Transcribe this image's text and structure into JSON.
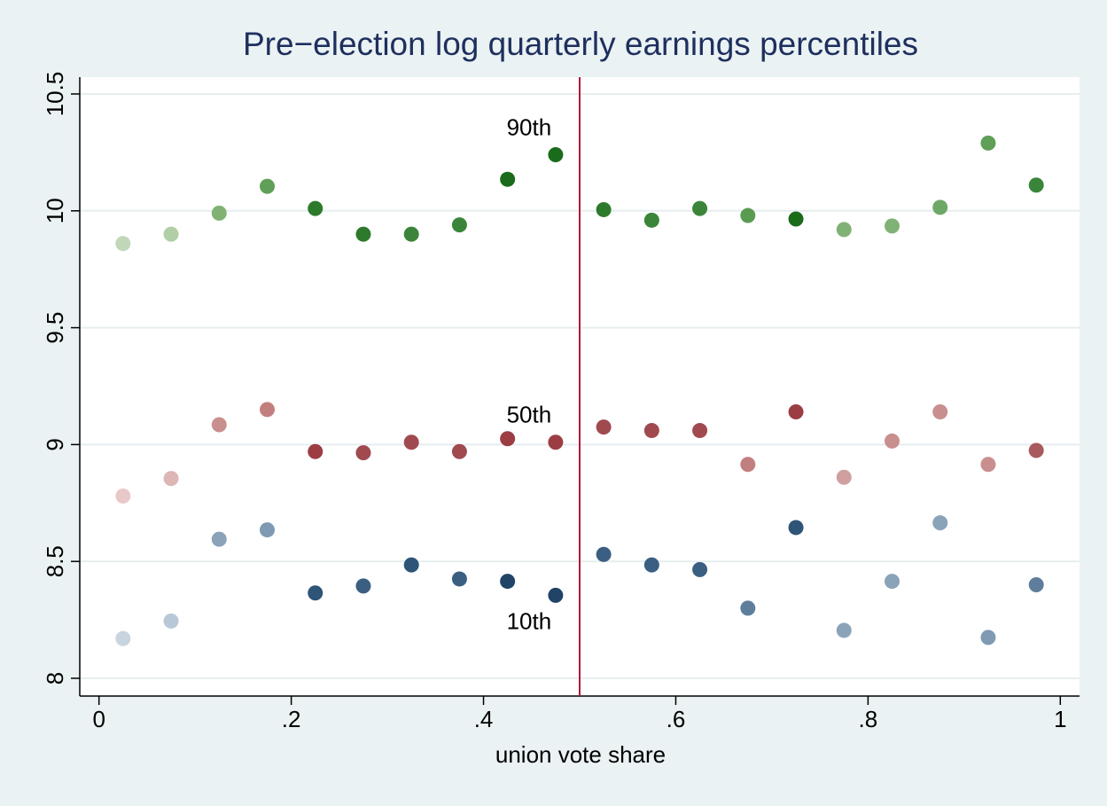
{
  "chart_data": {
    "type": "scatter",
    "title": "Pre−election log quarterly earnings percentiles",
    "x_label": "union vote share",
    "x": [
      0.025,
      0.075,
      0.125,
      0.175,
      0.225,
      0.275,
      0.325,
      0.375,
      0.425,
      0.475,
      0.525,
      0.575,
      0.625,
      0.675,
      0.725,
      0.775,
      0.825,
      0.875,
      0.925,
      0.975
    ],
    "series": [
      {
        "name": "90th",
        "values": [
          9.86,
          9.9,
          9.99,
          10.105,
          10.01,
          9.9,
          9.9,
          9.94,
          10.135,
          10.24,
          10.005,
          9.96,
          10.01,
          9.98,
          9.965,
          9.92,
          9.935,
          10.015,
          10.29,
          10.11
        ],
        "colors": [
          "#c0d8b8",
          "#b0cfa6",
          "#7fb273",
          "#5f9f57",
          "#2d7a2d",
          "#2d7a2d",
          "#3a853a",
          "#3a853a",
          "#1a6b1a",
          "#1a6b1a",
          "#2d7a2d",
          "#3a853a",
          "#3a853a",
          "#5a9b52",
          "#1a6b1a",
          "#80b275",
          "#80b275",
          "#6ea866",
          "#5f9f57",
          "#3a853a"
        ]
      },
      {
        "name": "50th",
        "values": [
          8.78,
          8.855,
          9.085,
          9.15,
          8.97,
          8.965,
          9.01,
          8.97,
          9.025,
          9.01,
          9.075,
          9.06,
          9.06,
          8.915,
          9.14,
          8.86,
          9.015,
          9.14,
          8.915,
          8.975
        ],
        "colors": [
          "#e8c8c8",
          "#ddb6b6",
          "#c98e8e",
          "#c27f7f",
          "#9c3d44",
          "#a04a50",
          "#a04a50",
          "#a04a50",
          "#9c3d44",
          "#9c3d44",
          "#a04a50",
          "#a04a50",
          "#a04a50",
          "#c27f7f",
          "#9c3d44",
          "#d0a0a0",
          "#c98e8e",
          "#c98e8e",
          "#c98e8e",
          "#a85a5e"
        ]
      },
      {
        "name": "10th",
        "values": [
          8.17,
          8.245,
          8.595,
          8.635,
          8.365,
          8.395,
          8.485,
          8.425,
          8.415,
          8.355,
          8.53,
          8.485,
          8.465,
          8.3,
          8.645,
          8.205,
          8.415,
          8.665,
          8.175,
          8.4
        ],
        "colors": [
          "#c8d4e0",
          "#b8c8d6",
          "#8aa3b9",
          "#7f9ab2",
          "#2e5478",
          "#3b5f82",
          "#2e5478",
          "#3b5f82",
          "#1f4468",
          "#1f4468",
          "#3b5f82",
          "#3b5f82",
          "#3b5f82",
          "#5f7e9c",
          "#2e5478",
          "#8aa3b9",
          "#8aa3b9",
          "#8aa3b9",
          "#7f9ab2",
          "#5f7e9c"
        ]
      }
    ],
    "vline": 0.5,
    "vline_color": "#b0173a",
    "xlim": [
      -0.02,
      1.02
    ],
    "ylim": [
      7.924,
      10.572
    ],
    "xticks": [
      0,
      {
        "value": 0.2,
        "label": ".2"
      },
      {
        "value": 0.4,
        "label": ".4"
      },
      {
        "value": 0.6,
        "label": ".6"
      },
      {
        "value": 0.8,
        "label": ".8"
      },
      1
    ],
    "yticks": [
      8,
      8.5,
      9,
      9.5,
      10,
      10.5
    ],
    "grid": true
  }
}
